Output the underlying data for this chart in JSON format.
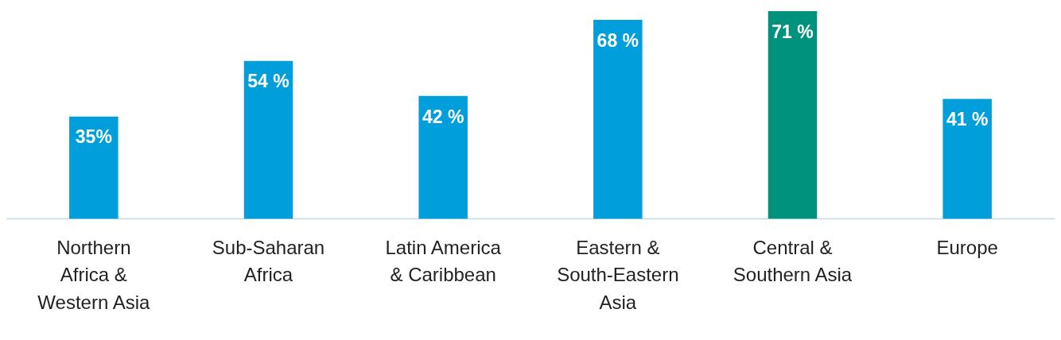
{
  "chart_data": {
    "type": "bar",
    "categories": [
      "Northern Africa & Western Asia",
      "Sub-Saharan Africa",
      "Latin America & Caribbean",
      "Eastern & South-Eastern Asia",
      "Central & Southern Asia",
      "Europe"
    ],
    "values": [
      35,
      54,
      42,
      68,
      71,
      41
    ],
    "colors": [
      "#009edb",
      "#009edb",
      "#009edb",
      "#009edb",
      "#00927c",
      "#009edb"
    ],
    "value_labels": [
      "35%",
      "54 %",
      "42 %",
      "68 %",
      "71 %",
      "41 %"
    ],
    "grid": false,
    "legend": false
  }
}
